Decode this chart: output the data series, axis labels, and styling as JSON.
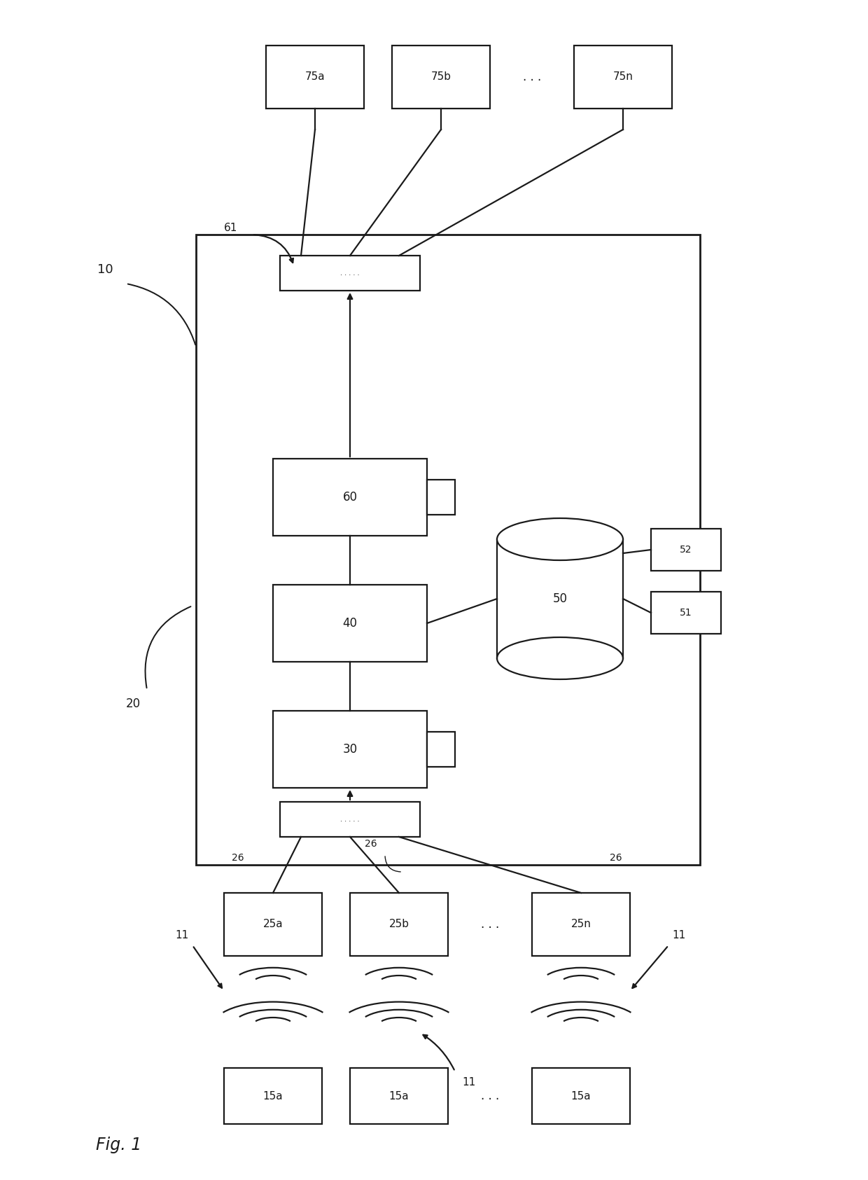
{
  "fig_label": "Fig. 1",
  "system_label": "10",
  "server_box_label": "20",
  "box_30": "30",
  "box_40": "40",
  "box_50": "50",
  "box_51": "51",
  "box_52": "52",
  "box_60": "60",
  "connector_box_top_label": "61",
  "devices_top": [
    "75a",
    "75b",
    "75n"
  ],
  "devices_mid": [
    "25a",
    "25b",
    "25n"
  ],
  "devices_bottom": [
    "15a",
    "15a",
    "15a"
  ],
  "label_11": "11",
  "label_26": "26",
  "bg_color": "#ffffff",
  "box_color": "#ffffff",
  "line_color": "#1a1a1a",
  "label_color": "#1a1a1a",
  "lw": 1.6
}
